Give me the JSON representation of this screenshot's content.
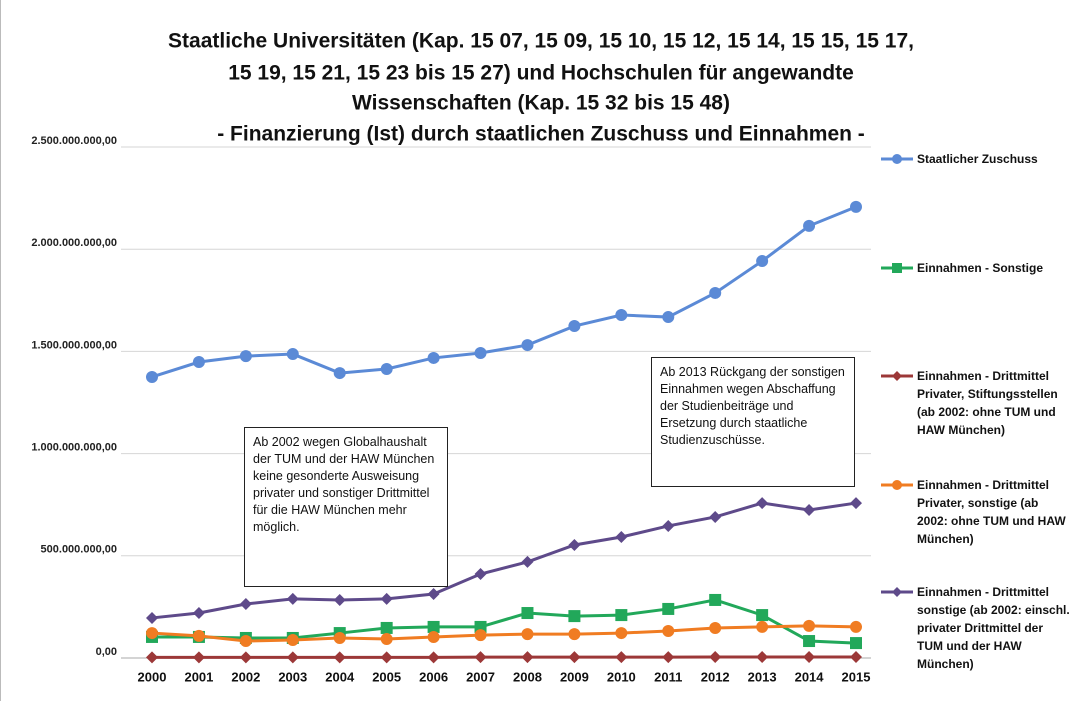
{
  "chart_data": {
    "type": "line",
    "title": [
      "Staatliche Universitäten (Kap. 15 07, 15 09, 15 10, 15 12, 15 14, 15 15, 15 17,",
      "15 19, 15 21, 15 23 bis 15 27) und Hochschulen für angewandte",
      "Wissenschaften (Kap. 15 32 bis 15 48)",
      "- Finanzierung (Ist) durch staatlichen Zuschuss und Einnahmen -"
    ],
    "categories": [
      "2000",
      "2001",
      "2002",
      "2003",
      "2004",
      "2005",
      "2006",
      "2007",
      "2008",
      "2009",
      "2010",
      "2011",
      "2012",
      "2013",
      "2014",
      "2015"
    ],
    "series": [
      {
        "name": "Staatlicher Zuschuss",
        "color": "#5b8ad6",
        "marker": "circle",
        "values": [
          1375000000,
          1448000000,
          1477000000,
          1487000000,
          1394000000,
          1414000000,
          1468000000,
          1492000000,
          1531000000,
          1624000000,
          1678000000,
          1668000000,
          1786000000,
          1942000000,
          2114000000,
          2207000000
        ]
      },
      {
        "name": "Einnahmen - Sonstige",
        "color": "#22a85a",
        "marker": "square",
        "values": [
          103000000,
          103000000,
          98000000,
          98000000,
          122000000,
          147000000,
          152000000,
          152000000,
          220000000,
          205000000,
          210000000,
          240000000,
          284000000,
          210000000,
          83000000,
          73000000
        ]
      },
      {
        "name": "Einnahmen - Drittmittel Privater, Stiftungsstellen (ab 2002: ohne TUM und HAW München)",
        "color": "#9c3838",
        "marker": "diamond",
        "values": [
          3000000,
          3000000,
          3000000,
          3000000,
          3000000,
          3000000,
          3000000,
          4000000,
          4000000,
          4000000,
          4000000,
          4000000,
          5000000,
          5000000,
          5000000,
          5000000
        ]
      },
      {
        "name": "Einnahmen - Drittmittel Privater, sonstige (ab 2002: ohne TUM und HAW München)",
        "color": "#f07c22",
        "marker": "circle",
        "values": [
          122000000,
          108000000,
          83000000,
          88000000,
          98000000,
          93000000,
          103000000,
          112000000,
          117000000,
          117000000,
          122000000,
          132000000,
          147000000,
          152000000,
          157000000,
          152000000
        ]
      },
      {
        "name": "Einnahmen - Drittmittel sonstige (ab 2002: einschl. privater Drittmittel der TUM und der HAW München)",
        "color": "#5e4a8a",
        "marker": "diamond",
        "values": [
          196000000,
          220000000,
          264000000,
          289000000,
          284000000,
          289000000,
          313000000,
          411000000,
          470000000,
          553000000,
          592000000,
          646000000,
          690000000,
          758000000,
          724000000,
          758000000
        ]
      }
    ],
    "ylim": [
      0,
      2500000000
    ],
    "yticks": [
      {
        "value": 0,
        "label": "0,00"
      },
      {
        "value": 500000000,
        "label": "500.000.000,00"
      },
      {
        "value": 1000000000,
        "label": "1.000.000.000,00"
      },
      {
        "value": 1500000000,
        "label": "1.500.000.000,00"
      },
      {
        "value": 2000000000,
        "label": "2.000.000.000,00"
      },
      {
        "value": 2500000000,
        "label": "2.500.000.000,00"
      }
    ],
    "grid": true,
    "legend": "right",
    "annotations": [
      "Ab 2002 wegen Globalhaushalt der TUM und der HAW München keine gesonderte Ausweisung privater und sonstiger Drittmittel für die HAW München mehr möglich.",
      "Ab 2013 Rückgang der sonstigen Einnahmen wegen Abschaffung der Studienbeiträge und Ersetzung durch staatliche Studienzuschüsse."
    ]
  }
}
